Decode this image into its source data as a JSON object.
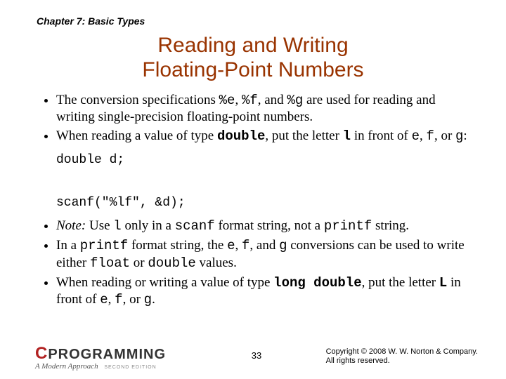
{
  "chapter": "Chapter 7: Basic Types",
  "title_line1": "Reading and Writing",
  "title_line2": "Floating-Point Numbers",
  "bullets": {
    "b1a": "The conversion specifications ",
    "b1b": "%e",
    "b1c": ", ",
    "b1d": "%f",
    "b1e": ", and ",
    "b1f": "%g",
    "b1g": " are used for reading and writing single-precision floating-point numbers.",
    "b2a": "When reading a value of type ",
    "b2b": "double",
    "b2c": ", put the letter ",
    "b2d": "l",
    "b2e": " in front of ",
    "b2f": "e",
    "b2g": ", ",
    "b2h": "f",
    "b2i": ", or ",
    "b2j": "g",
    "b2k": ":",
    "code1": "double d;",
    "code2": "scanf(\"%lf\", &d);",
    "b3a": "Note:",
    "b3b": " Use ",
    "b3c": "l",
    "b3d": " only in a ",
    "b3e": "scanf",
    "b3f": " format string, not a ",
    "b3g": "printf",
    "b3h": " string.",
    "b4a": "In a ",
    "b4b": "printf",
    "b4c": " format string, the ",
    "b4d": "e",
    "b4e": ", ",
    "b4f": "f",
    "b4g": ", and ",
    "b4h": "g",
    "b4i": " conversions can be used to write either ",
    "b4j": "float",
    "b4k": " or ",
    "b4l": "double",
    "b4m": " values.",
    "b5a": "When reading or writing a value of type ",
    "b5b": "long double",
    "b5c": ", put the letter ",
    "b5d": "L",
    "b5e": " in front of ",
    "b5f": "e",
    "b5g": ", ",
    "b5h": "f",
    "b5i": ", or ",
    "b5j": "g",
    "b5k": "."
  },
  "footer": {
    "pagenum": "33",
    "logo_c": "C",
    "logo_rest": "PROGRAMMING",
    "logo_sub": "A Modern Approach",
    "logo_ed": "SECOND EDITION",
    "copy1": "Copyright © 2008 W. W. Norton & Company.",
    "copy2": "All rights reserved."
  },
  "colors": {
    "title": "#993300",
    "logo_c": "#b22222",
    "text": "#000000",
    "bg": "#ffffff"
  }
}
